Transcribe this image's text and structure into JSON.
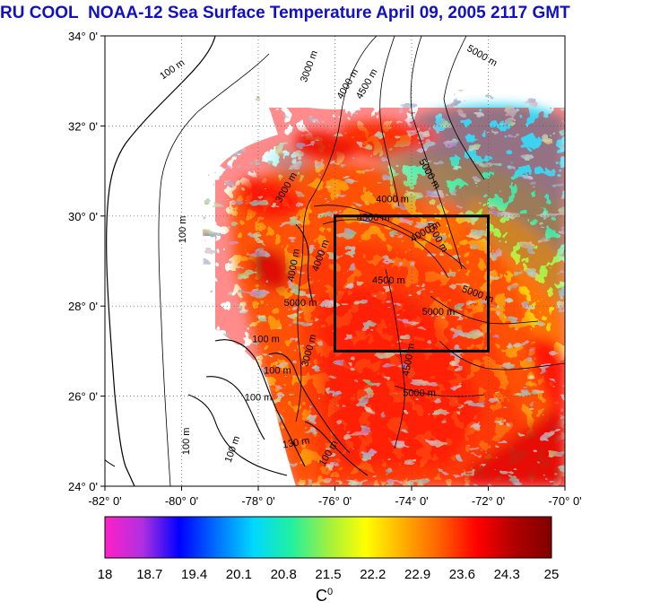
{
  "title": {
    "source": "RU COOL",
    "main": "NOAA-12 Sea Surface Temperature April 09, 2005 2117 GMT"
  },
  "map": {
    "lon_range": [
      -82,
      -70
    ],
    "lat_range": [
      24,
      34
    ],
    "x_ticks": [
      "-82° 0'",
      "-80° 0'",
      "-78° 0'",
      "-76° 0'",
      "-74° 0'",
      "-72° 0'",
      "-70° 0'"
    ],
    "y_ticks": [
      "34° 0'",
      "32° 0'",
      "30° 0'",
      "28° 0'",
      "26° 0'",
      "24° 0'"
    ],
    "grid": "dotted",
    "study_box": {
      "lon": [
        -76,
        -72
      ],
      "lat": [
        27,
        30
      ]
    },
    "contour_labels": [
      {
        "text": "100 m",
        "lon": -80.2,
        "lat": 33.2,
        "angle": -35
      },
      {
        "text": "3000 m",
        "lon": -76.6,
        "lat": 33.3,
        "angle": -70
      },
      {
        "text": "5000 m",
        "lon": -72.2,
        "lat": 33.5,
        "angle": 30
      },
      {
        "text": "4000 m",
        "lon": -75.6,
        "lat": 32.9,
        "angle": -60
      },
      {
        "text": "4500 m",
        "lon": -75.1,
        "lat": 32.9,
        "angle": -60
      },
      {
        "text": "100 m",
        "lon": -79.9,
        "lat": 29.7,
        "angle": -90
      },
      {
        "text": "3000 m",
        "lon": -77.2,
        "lat": 30.6,
        "angle": -60
      },
      {
        "text": "5000 m",
        "lon": -73.6,
        "lat": 30.9,
        "angle": 60
      },
      {
        "text": "4000 m",
        "lon": -74.5,
        "lat": 30.3,
        "angle": 0
      },
      {
        "text": "4500 m",
        "lon": -75.0,
        "lat": 29.9,
        "angle": 0
      },
      {
        "text": "4000 m",
        "lon": -73.6,
        "lat": 29.6,
        "angle": -30
      },
      {
        "text": "4500 m",
        "lon": -73.4,
        "lat": 29.5,
        "angle": 60
      },
      {
        "text": "4500 m",
        "lon": -74.6,
        "lat": 28.5,
        "angle": 0
      },
      {
        "text": "5000 m",
        "lon": -72.3,
        "lat": 28.2,
        "angle": 20
      },
      {
        "text": "5000 m",
        "lon": -73.3,
        "lat": 27.8,
        "angle": 0
      },
      {
        "text": "5000 m",
        "lon": -76.9,
        "lat": 28.0,
        "angle": 0
      },
      {
        "text": "3000 m",
        "lon": -76.6,
        "lat": 27.0,
        "angle": -75
      },
      {
        "text": "4500 m",
        "lon": -74.0,
        "lat": 26.8,
        "angle": -80
      },
      {
        "text": "5000 m",
        "lon": -73.8,
        "lat": 26.0,
        "angle": 0
      },
      {
        "text": "100 m",
        "lon": -77.8,
        "lat": 27.2,
        "angle": 0
      },
      {
        "text": "100 m",
        "lon": -77.5,
        "lat": 26.5,
        "angle": 0
      },
      {
        "text": "100 m",
        "lon": -78.0,
        "lat": 25.9,
        "angle": 0
      },
      {
        "text": "100 m",
        "lon": -79.8,
        "lat": 25.0,
        "angle": -90
      },
      {
        "text": "100 m",
        "lon": -78.6,
        "lat": 24.8,
        "angle": -70
      },
      {
        "text": "130 m",
        "lon": -77.0,
        "lat": 24.9,
        "angle": -10
      },
      {
        "text": "100 m",
        "lon": -76.1,
        "lat": 24.7,
        "angle": -60
      },
      {
        "text": "4000 m",
        "lon": -77.0,
        "lat": 28.9,
        "angle": -80
      },
      {
        "text": "4000 m",
        "lon": -76.3,
        "lat": 29.1,
        "angle": -70
      }
    ]
  },
  "colorbar": {
    "unit": "C",
    "unit_superscript": "0",
    "tick_labels": [
      "18",
      "18.7",
      "19.4",
      "20.1",
      "20.8",
      "21.5",
      "22.2",
      "22.9",
      "23.6",
      "24.3",
      "25"
    ],
    "range": [
      18,
      25
    ],
    "stops": [
      "#ff20c8",
      "#b030e0",
      "#0000ff",
      "#0070ff",
      "#00d8ff",
      "#20f0a0",
      "#a0f040",
      "#ffff00",
      "#ffb000",
      "#ff6000",
      "#ff0000",
      "#b00000",
      "#800000"
    ]
  }
}
